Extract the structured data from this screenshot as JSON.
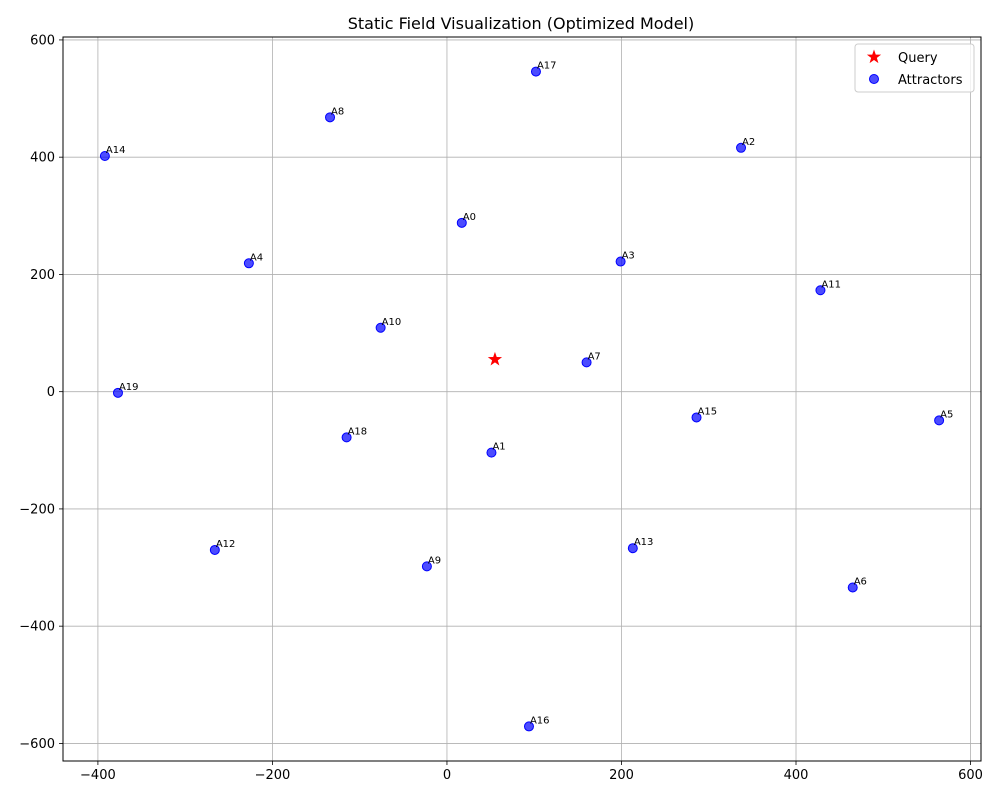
{
  "chart_data": {
    "type": "scatter",
    "title": "Static Field Visualization (Optimized Model)",
    "xlabel": "",
    "ylabel": "",
    "xlim": [
      -440,
      612
    ],
    "ylim": [
      -630,
      605
    ],
    "xticks": [
      -400,
      -200,
      0,
      200,
      400,
      600
    ],
    "yticks": [
      -600,
      -400,
      -200,
      0,
      200,
      400,
      600
    ],
    "grid": true,
    "legend_position": "top-right",
    "series": [
      {
        "name": "Query",
        "marker": "star",
        "color": "#ff0000",
        "points": [
          {
            "x": 55,
            "y": 55
          }
        ]
      },
      {
        "name": "Attractors",
        "marker": "circle",
        "color": "#0000ff",
        "points": [
          {
            "label": "A0",
            "x": 17,
            "y": 288
          },
          {
            "label": "A1",
            "x": 51,
            "y": -104
          },
          {
            "label": "A2",
            "x": 337,
            "y": 416
          },
          {
            "label": "A3",
            "x": 199,
            "y": 222
          },
          {
            "label": "A4",
            "x": -227,
            "y": 219
          },
          {
            "label": "A5",
            "x": 564,
            "y": -49
          },
          {
            "label": "A6",
            "x": 465,
            "y": -334
          },
          {
            "label": "A7",
            "x": 160,
            "y": 50
          },
          {
            "label": "A8",
            "x": -134,
            "y": 468
          },
          {
            "label": "A9",
            "x": -23,
            "y": -298
          },
          {
            "label": "A10",
            "x": -76,
            "y": 109
          },
          {
            "label": "A11",
            "x": 428,
            "y": 173
          },
          {
            "label": "A12",
            "x": -266,
            "y": -270
          },
          {
            "label": "A13",
            "x": 213,
            "y": -267
          },
          {
            "label": "A14",
            "x": -392,
            "y": 402
          },
          {
            "label": "A15",
            "x": 286,
            "y": -44
          },
          {
            "label": "A16",
            "x": 94,
            "y": -571
          },
          {
            "label": "A17",
            "x": 102,
            "y": 546
          },
          {
            "label": "A18",
            "x": -115,
            "y": -78
          },
          {
            "label": "A19",
            "x": -377,
            "y": -2
          }
        ]
      }
    ]
  }
}
